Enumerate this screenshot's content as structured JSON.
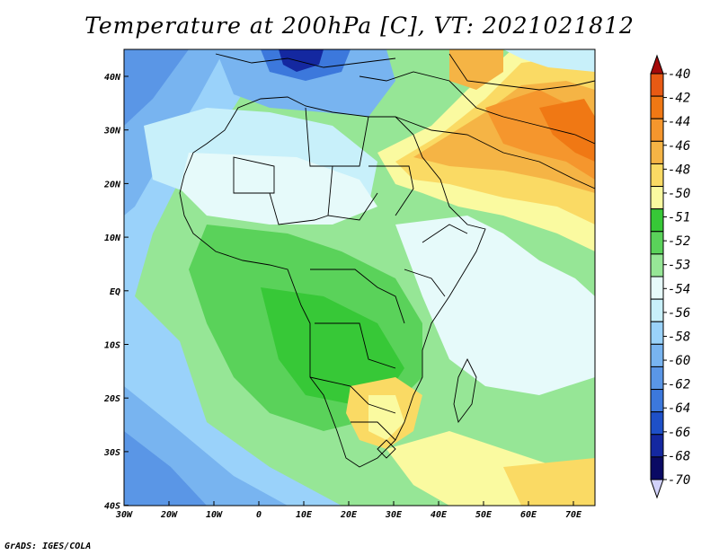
{
  "title": "Temperature at 200hPa [C], VT: 2021021812",
  "credit": "GrADS: IGES/COLA",
  "map": {
    "lon_range": [
      -30,
      75
    ],
    "lat_range": [
      -40,
      45
    ],
    "lon_ticks": [
      "30W",
      "20W",
      "10W",
      "0",
      "10E",
      "20E",
      "30E",
      "40E",
      "50E",
      "60E",
      "70E"
    ],
    "lat_ticks": [
      "40N",
      "30N",
      "20N",
      "10N",
      "EQ",
      "10S",
      "20S",
      "30S",
      "40S"
    ]
  },
  "colorbar": {
    "labels": [
      "-40",
      "-42",
      "-44",
      "-46",
      "-48",
      "-50",
      "-51",
      "-52",
      "-53",
      "-54",
      "-56",
      "-58",
      "-60",
      "-62",
      "-64",
      "-66",
      "-68",
      "-70"
    ],
    "colors": [
      "#a50a0a",
      "#e85a14",
      "#f07814",
      "#f5962d",
      "#f5b445",
      "#fada64",
      "#fafaa0",
      "#37c837",
      "#5ad25a",
      "#96e696",
      "#e6fafa",
      "#c8f0fa",
      "#9ad2fa",
      "#78b4f0",
      "#5a96e6",
      "#3c78dc",
      "#1e50c8",
      "#1428a0",
      "#0a0a64",
      "#d2d2fa"
    ]
  }
}
